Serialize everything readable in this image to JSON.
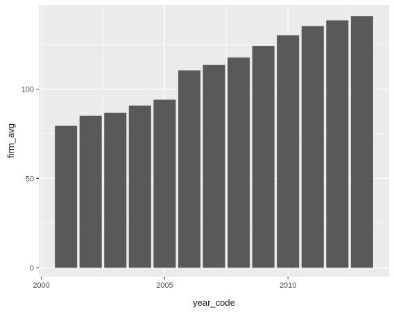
{
  "chart_data": {
    "type": "bar",
    "xlabel": "year_code",
    "ylabel": "firm_avg",
    "x": [
      2001,
      2002,
      2003,
      2004,
      2005,
      2006,
      2007,
      2008,
      2009,
      2010,
      2011,
      2012,
      2013
    ],
    "values": [
      79.5,
      85.2,
      86.8,
      90.8,
      94.2,
      110.6,
      113.6,
      117.8,
      124.3,
      130.2,
      135.4,
      138.6,
      141.0
    ],
    "xlim": [
      1999.9,
      2014.1
    ],
    "ylim": [
      -5,
      147.3
    ],
    "x_ticks": [
      2000,
      2005,
      2010
    ],
    "x_tick_labels": [
      "2000",
      "2005",
      "2010"
    ],
    "y_ticks": [
      0,
      50,
      100
    ],
    "y_tick_labels": [
      "0",
      "50",
      "100"
    ],
    "bar_width": 0.9,
    "grid": true,
    "colors": {
      "panel": "#ebebeb",
      "grid_major": "#ffffff",
      "bar": "#595959"
    }
  }
}
